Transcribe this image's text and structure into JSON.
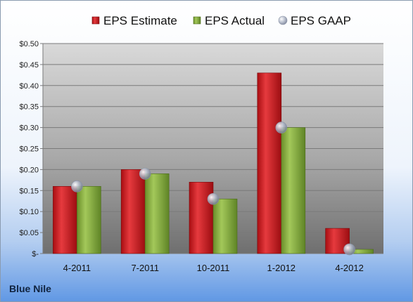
{
  "company": "Blue Nile",
  "chart_data": {
    "type": "bar",
    "categories": [
      "4-2011",
      "7-2011",
      "10-2011",
      "1-2012",
      "4-2012"
    ],
    "series": [
      {
        "name": "EPS Estimate",
        "kind": "bar",
        "color": "#c0161b",
        "values": [
          0.16,
          0.2,
          0.17,
          0.43,
          0.06
        ]
      },
      {
        "name": "EPS Actual",
        "kind": "bar",
        "color": "#7ea33a",
        "values": [
          0.16,
          0.19,
          0.13,
          0.3,
          0.01
        ]
      },
      {
        "name": "EPS GAAP",
        "kind": "marker",
        "color": "#a9b4c8",
        "values": [
          0.16,
          0.19,
          0.13,
          0.3,
          0.01
        ]
      }
    ],
    "ylim": [
      0,
      0.5
    ],
    "yticks": [
      0,
      0.05,
      0.1,
      0.15,
      0.2,
      0.25,
      0.3,
      0.35,
      0.4,
      0.45,
      0.5
    ],
    "ytick_labels": [
      "$-",
      "$0.05",
      "$0.10",
      "$0.15",
      "$0.20",
      "$0.25",
      "$0.30",
      "$0.35",
      "$0.40",
      "$0.45",
      "$0.50"
    ],
    "legend_position": "top",
    "grid": true
  }
}
